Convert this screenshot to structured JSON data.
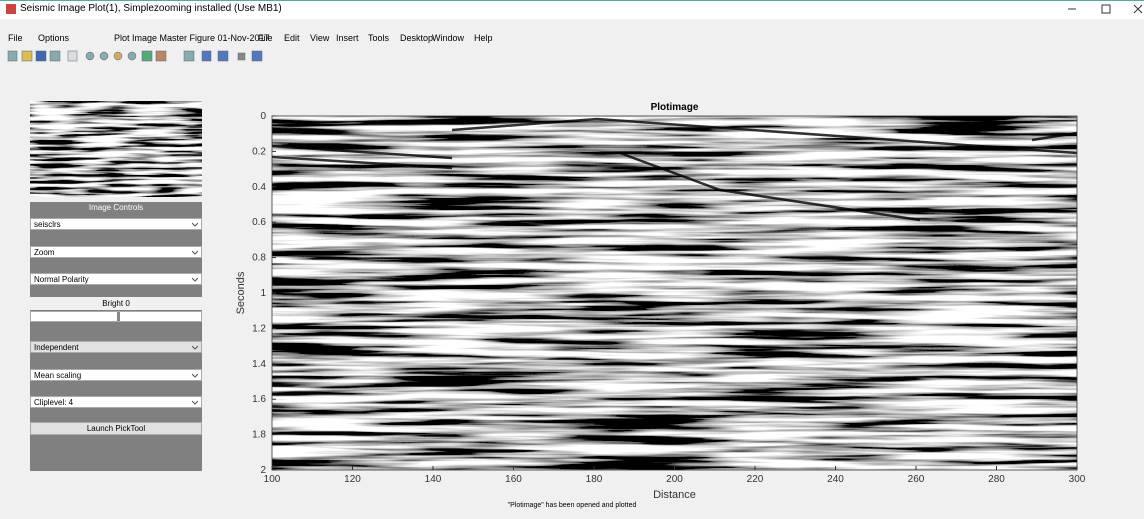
{
  "window": {
    "title": "Seismic Image Plot(1), Simplezooming installed (Use MB1)"
  },
  "menu": [
    "File",
    "Options",
    "Plot Image Master Figure 01-Nov-2017",
    "File",
    "Edit",
    "View",
    "Insert",
    "Tools",
    "Desktop",
    "Window",
    "Help"
  ],
  "controls": {
    "panel_title": "Image Controls",
    "dropdowns": [
      "seisclrs",
      "Zoom",
      "Normal Polarity"
    ],
    "bright_label": "Bright 0",
    "dropdowns2": [
      "Independent",
      "Mean scaling",
      "Cliplevel: 4"
    ],
    "button": "Launch PickTool"
  },
  "chart_data": {
    "type": "image",
    "title": "Plotimage",
    "x_label": "Distance",
    "y_label": "Seconds",
    "xlim": [
      100,
      300
    ],
    "xticks": [
      100,
      120,
      140,
      160,
      180,
      200,
      220,
      240,
      260,
      280,
      300
    ],
    "ylim": [
      0,
      2
    ],
    "y_reversed": true,
    "yticks": [
      0,
      0.2,
      0.4,
      0.6,
      0.8,
      1,
      1.2,
      1.4,
      1.6,
      1.8,
      2
    ]
  },
  "status": "\"Plotimage\" has been opened and plotted"
}
